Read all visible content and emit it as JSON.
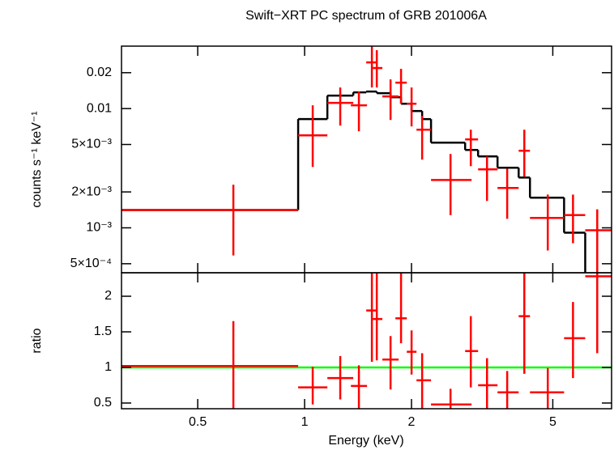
{
  "chart_data": [
    {
      "type": "errorbar",
      "title": "Swift−XRT PC spectrum of GRB 201006A",
      "ylabel": "counts s⁻¹ keV⁻¹",
      "xscale": "log",
      "yscale": "log",
      "xlim": [
        0.305,
        7.32
      ],
      "ylim": [
        0.00042,
        0.0334
      ],
      "yticks": [
        0.02,
        0.01,
        {
          "value": 0.005,
          "label": "5×10⁻³"
        },
        {
          "value": 0.002,
          "label": "2×10⁻³"
        },
        {
          "value": 0.001,
          "label": "10⁻³"
        },
        {
          "value": 0.0005,
          "label": "5×10⁻⁴"
        }
      ],
      "color": "#ff0000",
      "x": [
        0.63,
        1.054,
        1.26,
        1.422,
        1.547,
        1.597,
        1.746,
        1.869,
        2.001,
        2.143,
        2.576,
        2.938,
        3.264,
        3.72,
        4.157,
        4.84,
        5.7,
        6.67
      ],
      "x_low": [
        0.305,
        0.959,
        1.159,
        1.35,
        1.491,
        1.556,
        1.656,
        1.802,
        1.94,
        2.066,
        2.27,
        2.832,
        3.08,
        3.494,
        4.007,
        4.312,
        5.38,
        6.17
      ],
      "x_high": [
        0.959,
        1.159,
        1.371,
        1.499,
        1.606,
        1.656,
        1.84,
        1.94,
        2.066,
        2.27,
        2.953,
        3.08,
        3.494,
        4.007,
        4.312,
        5.38,
        6.17,
        7.32
      ],
      "y": [
        0.00141,
        0.00596,
        0.01116,
        0.01065,
        0.0244,
        0.02188,
        0.01265,
        0.0165,
        0.01098,
        0.00665,
        0.00252,
        0.00551,
        0.00309,
        0.00216,
        0.00443,
        0.00121,
        0.00128,
        0.000955
      ],
      "y_low": [
        0.000587,
        0.00324,
        0.0072,
        0.00645,
        0.01503,
        0.01503,
        0.00803,
        0.01098,
        0.00709,
        0.00373,
        0.00128,
        0.00329,
        0.00168,
        0.00119,
        0.00268,
        0.000645,
        0.000743,
        0.000397
      ],
      "y_high": [
        0.0023,
        0.01065,
        0.01503,
        0.0139,
        0.0334,
        0.0309,
        0.01757,
        0.02154,
        0.01503,
        0.00869,
        0.00416,
        0.00665,
        0.00397,
        0.00314,
        0.00665,
        0.0019,
        0.0019,
        0.00143
      ],
      "model": {
        "color": "#000000",
        "edges": [
          0.305,
          0.959,
          1.159,
          1.371,
          1.491,
          1.597,
          1.746,
          1.869,
          2.001,
          2.143,
          2.27,
          2.832,
          3.08,
          3.494,
          4.007,
          4.312,
          5.38,
          6.17,
          7.32
        ],
        "values": [
          0.00141,
          0.00816,
          0.01285,
          0.01368,
          0.0139,
          0.01346,
          0.01245,
          0.01098,
          0.00954,
          0.00816,
          0.00518,
          0.0045,
          0.00397,
          0.00319,
          0.00264,
          0.00179,
          0.00091,
          0.00035
        ]
      }
    },
    {
      "type": "errorbar",
      "ylabel": "ratio",
      "xlabel": "Energy (keV)",
      "xscale": "log",
      "xlim": [
        0.305,
        7.32
      ],
      "xticks": [
        0.5,
        1,
        2,
        5
      ],
      "ylim": [
        0.42,
        2.33
      ],
      "yticks": [
        0.5,
        1,
        1.5,
        2
      ],
      "color": "#ff0000",
      "reference": 1,
      "reference_color": "#00ff00",
      "y": [
        1.02,
        0.72,
        0.85,
        0.74,
        1.8,
        1.68,
        1.11,
        1.69,
        1.22,
        0.82,
        0.48,
        1.23,
        0.75,
        0.65,
        1.72,
        0.65,
        1.41,
        2.28
      ],
      "y_low": [
        0.4,
        0.48,
        0.55,
        0.42,
        1.08,
        1.1,
        0.69,
        1.34,
        0.9,
        0.42,
        0.42,
        0.72,
        0.42,
        0.42,
        0.91,
        0.42,
        0.85,
        1.2
      ],
      "y_high": [
        1.65,
        1.01,
        1.16,
        1.03,
        2.4,
        2.4,
        1.44,
        2.5,
        1.52,
        1.2,
        0.7,
        1.72,
        1.13,
        0.95,
        2.4,
        0.99,
        1.92,
        2.6
      ]
    }
  ]
}
